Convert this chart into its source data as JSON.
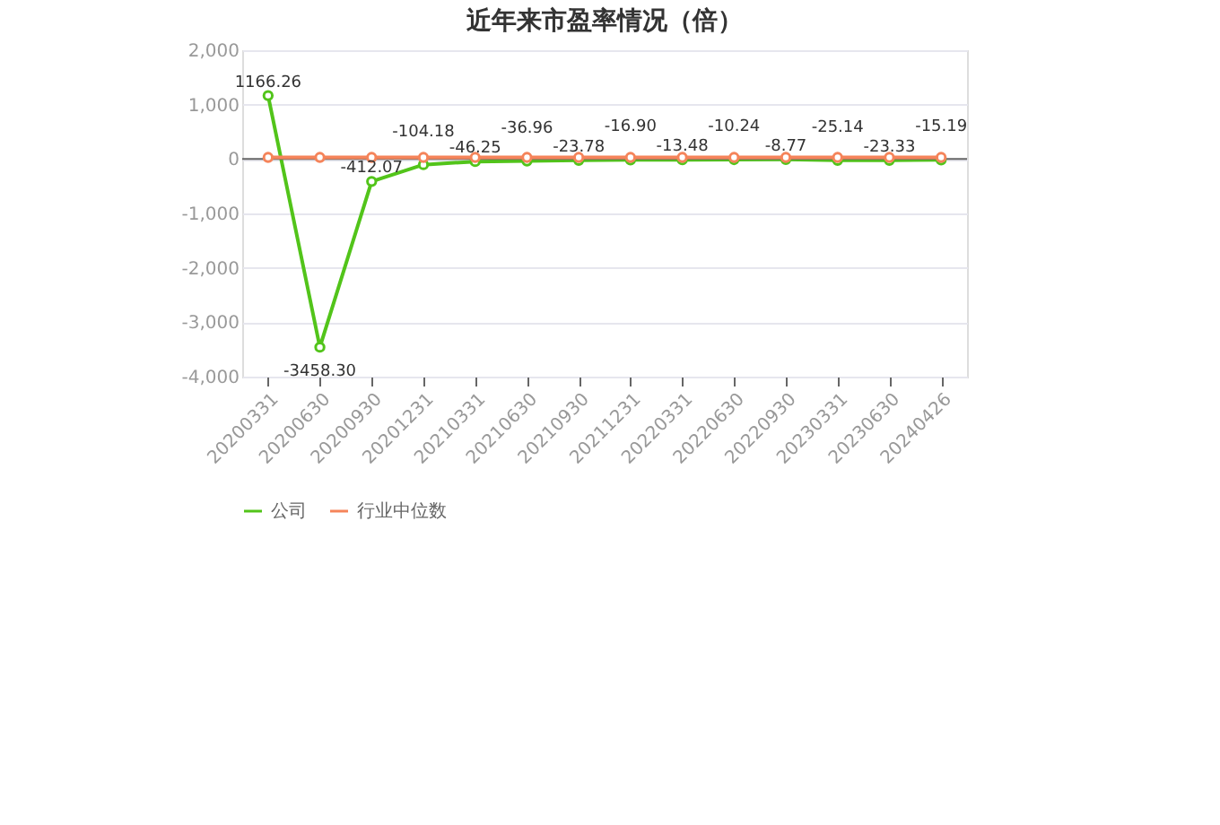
{
  "chart_data": {
    "type": "line",
    "title": "近年来市盈率情况（倍）",
    "categories": [
      "20200331",
      "20200630",
      "20200930",
      "20201231",
      "20210331",
      "20210630",
      "20210930",
      "20211231",
      "20220331",
      "20220630",
      "20220930",
      "20230331",
      "20230630",
      "20240426"
    ],
    "series": [
      {
        "name": "公司",
        "color": "#52c41a",
        "values": [
          1166.26,
          -3458.3,
          -412.07,
          -104.18,
          -46.25,
          -36.96,
          -23.78,
          -16.9,
          -13.48,
          -10.24,
          -8.77,
          -25.14,
          -23.33,
          -15.19
        ],
        "value_labels": [
          "1166.26",
          "-3458.30",
          "-412.07",
          "-104.18",
          "-46.25",
          "-36.96",
          "-23.78",
          "-16.90",
          "-13.48",
          "-10.24",
          "-8.77",
          "-25.14",
          "-23.33",
          "-15.19"
        ]
      },
      {
        "name": "行业中位数",
        "color": "#f5845a",
        "values": [
          30,
          30,
          30,
          30,
          30,
          30,
          30,
          30,
          30,
          30,
          30,
          30,
          30,
          30
        ]
      }
    ],
    "ylim": [
      -4000,
      2000
    ],
    "yticks": [
      {
        "value": -4000,
        "label": "-4,000"
      },
      {
        "value": -3000,
        "label": "-3,000"
      },
      {
        "value": -2000,
        "label": "-2,000"
      },
      {
        "value": -1000,
        "label": "-1,000"
      },
      0,
      {
        "value": 1000,
        "label": "1,000"
      },
      {
        "value": 2000,
        "label": "2,000"
      }
    ],
    "grid": "y",
    "legend": "bottom",
    "marker": "circle",
    "line_style": "solid"
  }
}
